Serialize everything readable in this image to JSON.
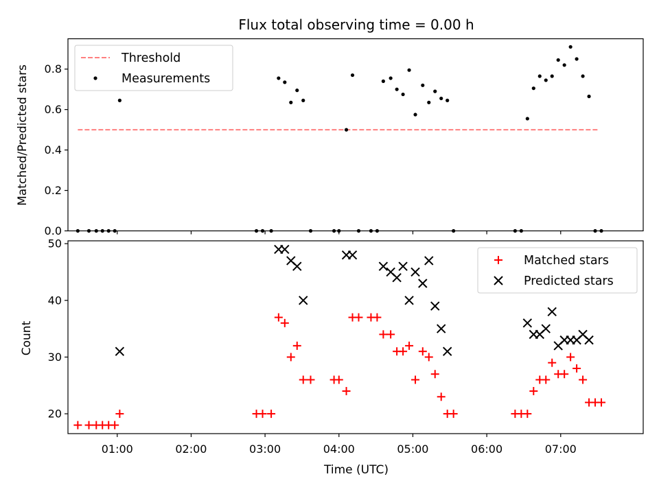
{
  "chart_data": [
    {
      "type": "scatter",
      "title": "Flux total observing time = 0.00 h",
      "xlabel": "",
      "ylabel": "Matched/Predicted stars",
      "xlim": [
        "00:20",
        "08:07"
      ],
      "ylim": [
        0,
        0.95
      ],
      "yticks": [
        "0.0",
        "0.2",
        "0.4",
        "0.6",
        "0.8"
      ],
      "grid": false,
      "legend": {
        "position": "top-left",
        "entries": [
          "Threshold",
          "Measurements"
        ]
      },
      "threshold": {
        "name": "Threshold",
        "x": [
          "00:28",
          "07:31"
        ],
        "y": 0.5,
        "color": "#ff7f7f"
      },
      "series": [
        {
          "name": "Measurements",
          "marker": "dot",
          "color": "#000000",
          "points": [
            [
              "00:28",
              0.0
            ],
            [
              "00:37",
              0.0
            ],
            [
              "00:43",
              0.0
            ],
            [
              "00:48",
              0.0
            ],
            [
              "00:53",
              0.0
            ],
            [
              "00:58",
              0.0
            ],
            [
              "01:02",
              0.645
            ],
            [
              "02:53",
              0.0
            ],
            [
              "02:58",
              0.0
            ],
            [
              "03:05",
              0.0
            ],
            [
              "03:11",
              0.755
            ],
            [
              "03:16",
              0.735
            ],
            [
              "03:21",
              0.635
            ],
            [
              "03:26",
              0.695
            ],
            [
              "03:31",
              0.645
            ],
            [
              "03:37",
              0.0
            ],
            [
              "03:56",
              0.0
            ],
            [
              "04:00",
              0.0
            ],
            [
              "04:06",
              0.5
            ],
            [
              "04:11",
              0.77
            ],
            [
              "04:16",
              0.0
            ],
            [
              "04:26",
              0.0
            ],
            [
              "04:31",
              0.0
            ],
            [
              "04:36",
              0.74
            ],
            [
              "04:42",
              0.755
            ],
            [
              "04:47",
              0.7
            ],
            [
              "04:52",
              0.675
            ],
            [
              "04:57",
              0.795
            ],
            [
              "05:02",
              0.575
            ],
            [
              "05:08",
              0.72
            ],
            [
              "05:13",
              0.635
            ],
            [
              "05:18",
              0.69
            ],
            [
              "05:23",
              0.655
            ],
            [
              "05:28",
              0.645
            ],
            [
              "05:33",
              0.0
            ],
            [
              "06:23",
              0.0
            ],
            [
              "06:28",
              0.0
            ],
            [
              "06:33",
              0.555
            ],
            [
              "06:38",
              0.705
            ],
            [
              "06:43",
              0.765
            ],
            [
              "06:48",
              0.745
            ],
            [
              "06:53",
              0.765
            ],
            [
              "06:58",
              0.845
            ],
            [
              "07:03",
              0.82
            ],
            [
              "07:08",
              0.91
            ],
            [
              "07:13",
              0.85
            ],
            [
              "07:18",
              0.765
            ],
            [
              "07:23",
              0.665
            ],
            [
              "07:28",
              0.0
            ],
            [
              "07:33",
              0.0
            ]
          ]
        }
      ]
    },
    {
      "type": "scatter",
      "title": "",
      "xlabel": "Time (UTC)",
      "ylabel": "Count",
      "xlim": [
        "00:20",
        "08:07"
      ],
      "ylim": [
        16.5,
        50.5
      ],
      "xticks": [
        "01:00",
        "02:00",
        "03:00",
        "04:00",
        "05:00",
        "06:00",
        "07:00"
      ],
      "yticks": [
        "20",
        "30",
        "40",
        "50"
      ],
      "grid": false,
      "legend": {
        "position": "top-right",
        "entries": [
          "Matched stars",
          "Predicted stars"
        ]
      },
      "series": [
        {
          "name": "Matched stars",
          "marker": "plus",
          "color": "#ff0000",
          "points": [
            [
              "00:28",
              18
            ],
            [
              "00:37",
              18
            ],
            [
              "00:43",
              18
            ],
            [
              "00:48",
              18
            ],
            [
              "00:53",
              18
            ],
            [
              "00:58",
              18
            ],
            [
              "01:02",
              20
            ],
            [
              "02:53",
              20
            ],
            [
              "02:58",
              20
            ],
            [
              "03:05",
              20
            ],
            [
              "03:11",
              37
            ],
            [
              "03:16",
              36
            ],
            [
              "03:21",
              30
            ],
            [
              "03:26",
              32
            ],
            [
              "03:31",
              26
            ],
            [
              "03:37",
              26
            ],
            [
              "03:56",
              26
            ],
            [
              "04:00",
              26
            ],
            [
              "04:06",
              24
            ],
            [
              "04:11",
              37
            ],
            [
              "04:16",
              37
            ],
            [
              "04:26",
              37
            ],
            [
              "04:31",
              37
            ],
            [
              "04:36",
              34
            ],
            [
              "04:42",
              34
            ],
            [
              "04:47",
              31
            ],
            [
              "04:52",
              31
            ],
            [
              "04:57",
              32
            ],
            [
              "05:02",
              26
            ],
            [
              "05:08",
              31
            ],
            [
              "05:13",
              30
            ],
            [
              "05:18",
              27
            ],
            [
              "05:23",
              23
            ],
            [
              "05:28",
              20
            ],
            [
              "05:33",
              20
            ],
            [
              "06:23",
              20
            ],
            [
              "06:28",
              20
            ],
            [
              "06:33",
              20
            ],
            [
              "06:38",
              24
            ],
            [
              "06:43",
              26
            ],
            [
              "06:48",
              26
            ],
            [
              "06:53",
              29
            ],
            [
              "06:58",
              27
            ],
            [
              "07:03",
              27
            ],
            [
              "07:08",
              30
            ],
            [
              "07:13",
              28
            ],
            [
              "07:18",
              26
            ],
            [
              "07:23",
              22
            ],
            [
              "07:28",
              22
            ],
            [
              "07:33",
              22
            ]
          ]
        },
        {
          "name": "Predicted stars",
          "marker": "x",
          "color": "#000000",
          "points": [
            [
              "01:02",
              31
            ],
            [
              "03:11",
              49
            ],
            [
              "03:16",
              49
            ],
            [
              "03:21",
              47
            ],
            [
              "03:26",
              46
            ],
            [
              "03:31",
              40
            ],
            [
              "04:06",
              48
            ],
            [
              "04:11",
              48
            ],
            [
              "04:36",
              46
            ],
            [
              "04:42",
              45
            ],
            [
              "04:47",
              44
            ],
            [
              "04:52",
              46
            ],
            [
              "04:57",
              40
            ],
            [
              "05:02",
              45
            ],
            [
              "05:08",
              43
            ],
            [
              "05:13",
              47
            ],
            [
              "05:18",
              39
            ],
            [
              "05:23",
              35
            ],
            [
              "05:28",
              31
            ],
            [
              "06:33",
              36
            ],
            [
              "06:38",
              34
            ],
            [
              "06:43",
              34
            ],
            [
              "06:48",
              35
            ],
            [
              "06:53",
              38
            ],
            [
              "06:58",
              32
            ],
            [
              "07:03",
              33
            ],
            [
              "07:08",
              33
            ],
            [
              "07:13",
              33
            ],
            [
              "07:18",
              34
            ],
            [
              "07:23",
              33
            ]
          ]
        }
      ]
    }
  ]
}
